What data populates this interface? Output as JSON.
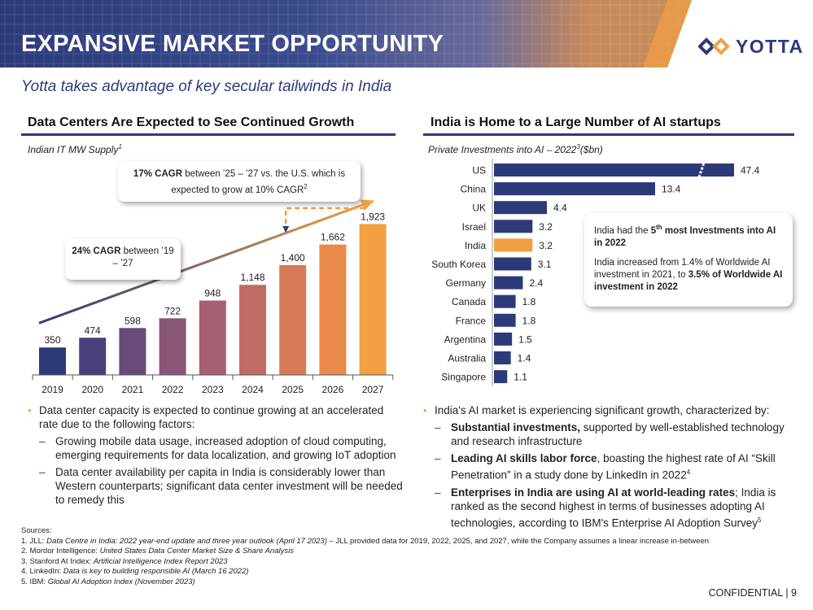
{
  "header": {
    "title": "EXPANSIVE MARKET OPPORTUNITY",
    "logo_text": "YOTTA",
    "colors": {
      "navy": "#2d3a7a",
      "orange": "#f2a041"
    }
  },
  "subtitle": "Yotta takes advantage of key secular tailwinds in India",
  "left": {
    "section_title": "Data Centers Are Expected to See Continued Growth",
    "chart_subtitle": "Indian IT MW Supply",
    "chart_subtitle_sup": "1",
    "callout_top": {
      "bold": "17% CAGR",
      "text": " between ’25 – ’27 vs. the U.S. which is expected to grow at 10% CAGR",
      "sup": "2"
    },
    "callout_mid": {
      "bold": "24% CAGR",
      "text": " between ’19 – ’27"
    },
    "bullets": [
      {
        "level": 1,
        "text": "Data center capacity is expected to continue growing at an accelerated rate due to the following factors:"
      },
      {
        "level": 2,
        "text": "Growing mobile data usage, increased adoption of cloud computing, emerging requirements for data localization, and growing IoT adoption"
      },
      {
        "level": 2,
        "text": "Data center availability per capita in India is considerably lower than Western counterparts; significant data center investment will be needed to remedy this"
      }
    ]
  },
  "right": {
    "section_title": "India is Home to a Large Number of AI startups",
    "chart_subtitle": "Private Investments into AI – 2022",
    "chart_subtitle_sup": "3",
    "chart_subtitle_unit": "($bn)",
    "callout": {
      "p1_pre": "India had the ",
      "p1_bold1": "5",
      "p1_sup": "th",
      "p1_bold2": " most Investments into AI in 2022",
      "p2_pre": "India increased from 1.4% of Worldwide AI investment in 2021, to ",
      "p2_bold": "3.5% of Worldwide AI investment in 2022"
    },
    "bullets": {
      "intro": "India's AI market is experiencing significant growth, characterized by:",
      "b1_bold": "Substantial investments,",
      "b1_text": " supported by well-established technology and research infrastructure",
      "b2_bold": "Leading AI skills labor force",
      "b2_text": ", boasting the highest rate of AI “Skill Penetration” in a study done by LinkedIn in 2022",
      "b2_sup": "4",
      "b3_bold": "Enterprises in India are using AI at world-leading rates",
      "b3_text": "; India is ranked as the second highest in terms of businesses adopting AI technologies, according to IBM's Enterprise AI Adoption Survey",
      "b3_sup": "5"
    }
  },
  "sources": {
    "label": "Sources:",
    "items": [
      {
        "prefix": "1. JLL: ",
        "italic": "Data Centre in India: 2022 year-end update and three year outlook (April 17 2023)",
        "suffix": " – JLL provided data for 2019, 2022, 2025, and 2027, while the Company assumes a linear increase in-between"
      },
      {
        "prefix": "2. Mordor Intelligence: ",
        "italic": "United States Data Center Market Size & Share Analysis",
        "suffix": ""
      },
      {
        "prefix": "3. Stanford AI Index: ",
        "italic": "Artificial Intelligence Index Report 2023",
        "suffix": ""
      },
      {
        "prefix": "4. LinkedIn: ",
        "italic": "Data is key to building responsible AI (March 16 2022)",
        "suffix": ""
      },
      {
        "prefix": "5. IBM: ",
        "italic": "Global AI Adoption Index (November 2023)",
        "suffix": ""
      }
    ]
  },
  "confidential": "CONFIDENTIAL | 9",
  "chart_data": [
    {
      "type": "bar",
      "title": "Indian IT MW Supply",
      "categories": [
        "2019",
        "2020",
        "2021",
        "2022",
        "2023",
        "2024",
        "2025",
        "2026",
        "2027"
      ],
      "values": [
        350,
        474,
        598,
        722,
        948,
        1148,
        1400,
        1662,
        1923
      ],
      "value_labels": [
        "350",
        "474",
        "598",
        "722",
        "948",
        "1,148",
        "1,400",
        "1,662",
        "1,923"
      ],
      "ylim": [
        0,
        2000
      ],
      "colors": [
        "#2d3a7a",
        "#4a3f7a",
        "#6a4a7a",
        "#8a5678",
        "#a66072",
        "#bf6c66",
        "#d67a58",
        "#e98a4a",
        "#f2a041"
      ]
    },
    {
      "type": "bar",
      "orientation": "horizontal",
      "title": "Private Investments into AI – 2022 ($bn)",
      "categories": [
        "US",
        "China",
        "UK",
        "Israel",
        "India",
        "South Korea",
        "Germany",
        "Canada",
        "France",
        "Argentina",
        "Australia",
        "Singapore"
      ],
      "values": [
        47.4,
        13.4,
        4.4,
        3.2,
        3.2,
        3.1,
        2.4,
        1.8,
        1.8,
        1.5,
        1.4,
        1.1
      ],
      "value_labels": [
        "47.4",
        "13.4",
        "4.4",
        "3.2",
        "3.2",
        "3.1",
        "2.4",
        "1.8",
        "1.8",
        "1.5",
        "1.4",
        "1.1"
      ],
      "highlight": "India",
      "colors": {
        "default": "#2d3a7a",
        "highlight": "#f2a041"
      }
    }
  ]
}
